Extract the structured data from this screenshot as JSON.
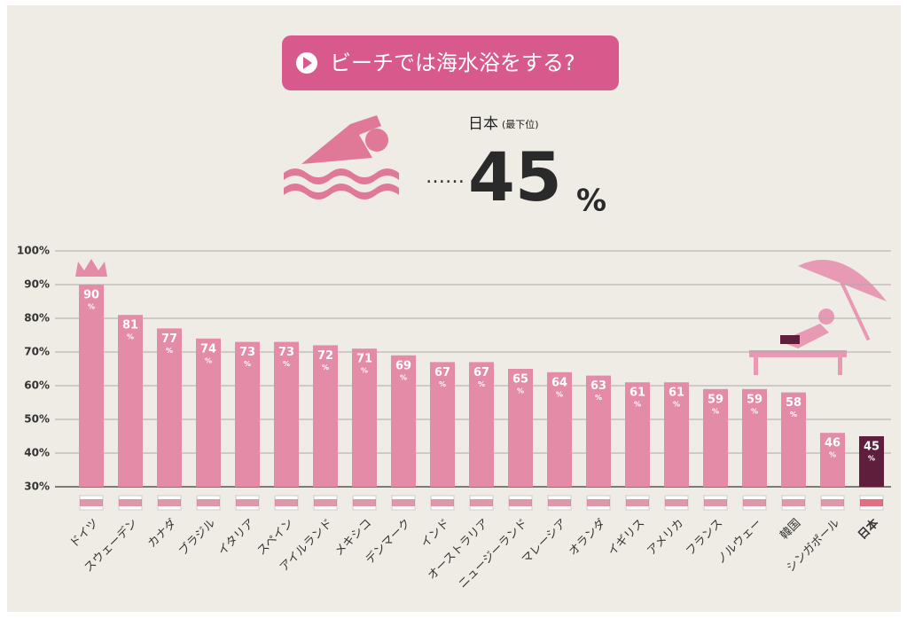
{
  "chart_data": {
    "type": "bar",
    "title": "ビーチでは海水浴をする?",
    "highlight": {
      "label": "日本",
      "note": "(最下位)",
      "value": 45,
      "unit": "%"
    },
    "categories": [
      "ドイツ",
      "スウェーデン",
      "カナダ",
      "ブラジル",
      "イタリア",
      "スペイン",
      "アイルランド",
      "メキシコ",
      "デンマーク",
      "インド",
      "オーストラリア",
      "ニュージーランド",
      "マレーシア",
      "オランダ",
      "イギリス",
      "アメリカ",
      "フランス",
      "ノルウェー",
      "韓国",
      "シンガポール",
      "日本"
    ],
    "values": [
      90,
      81,
      77,
      74,
      73,
      73,
      72,
      71,
      69,
      67,
      67,
      65,
      64,
      63,
      61,
      61,
      59,
      59,
      58,
      46,
      45
    ],
    "value_unit": "%",
    "colors": [
      "#e48ba8",
      "#e48ba8",
      "#e48ba8",
      "#e48ba8",
      "#e48ba8",
      "#e48ba8",
      "#e48ba8",
      "#e48ba8",
      "#e48ba8",
      "#e48ba8",
      "#e48ba8",
      "#e48ba8",
      "#e48ba8",
      "#e48ba8",
      "#e48ba8",
      "#e48ba8",
      "#e48ba8",
      "#e48ba8",
      "#e48ba8",
      "#e48ba8",
      "#5e1e3c"
    ],
    "ylim": [
      30,
      100
    ],
    "yticks": [
      {
        "value": 30,
        "label": "30%"
      },
      {
        "value": 40,
        "label": "40%"
      },
      {
        "value": 50,
        "label": "50%"
      },
      {
        "value": 60,
        "label": "60%"
      },
      {
        "value": 70,
        "label": "70%"
      },
      {
        "value": 80,
        "label": "80%"
      },
      {
        "value": 90,
        "label": "90%"
      },
      {
        "value": 100,
        "label": "100%"
      }
    ],
    "grid": true
  }
}
